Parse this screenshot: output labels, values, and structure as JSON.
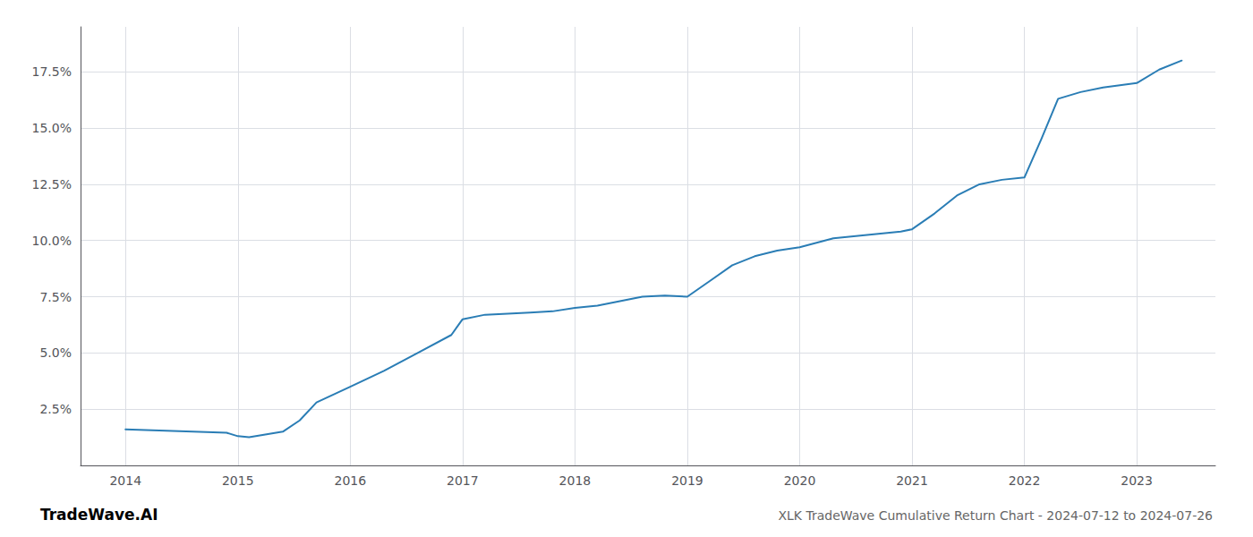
{
  "chart_data": {
    "type": "line",
    "title": "XLK TradeWave Cumulative Return Chart - 2024-07-12 to 2024-07-26",
    "annotations": [
      "TradeWave.AI"
    ],
    "x": [
      2014.0,
      2014.3,
      2014.6,
      2014.9,
      2015.0,
      2015.1,
      2015.4,
      2015.55,
      2015.7,
      2016.0,
      2016.3,
      2016.6,
      2016.9,
      2017.0,
      2017.2,
      2017.4,
      2017.6,
      2017.8,
      2018.0,
      2018.2,
      2018.4,
      2018.6,
      2018.8,
      2019.0,
      2019.2,
      2019.4,
      2019.6,
      2019.8,
      2020.0,
      2020.15,
      2020.3,
      2020.5,
      2020.7,
      2020.9,
      2021.0,
      2021.2,
      2021.4,
      2021.6,
      2021.8,
      2022.0,
      2022.15,
      2022.3,
      2022.5,
      2022.7,
      2022.85,
      2023.0,
      2023.2,
      2023.4
    ],
    "values": [
      1.6,
      1.55,
      1.5,
      1.45,
      1.3,
      1.25,
      1.5,
      2.0,
      2.8,
      3.5,
      4.2,
      5.0,
      5.8,
      6.5,
      6.7,
      6.75,
      6.8,
      6.85,
      7.0,
      7.1,
      7.3,
      7.5,
      7.55,
      7.5,
      8.2,
      8.9,
      9.3,
      9.55,
      9.7,
      9.9,
      10.1,
      10.2,
      10.3,
      10.4,
      10.5,
      11.2,
      12.0,
      12.5,
      12.7,
      12.8,
      14.5,
      16.3,
      16.6,
      16.8,
      16.9,
      17.0,
      17.6,
      18.0
    ],
    "color": "#2a7db5",
    "xlim": [
      2013.6,
      2023.7
    ],
    "xticks": [
      2014,
      2015,
      2016,
      2017,
      2018,
      2019,
      2020,
      2021,
      2022,
      2023
    ],
    "ylim": [
      0.0,
      19.5
    ],
    "yticks": [
      {
        "value": 2.5,
        "label": "2.5%"
      },
      {
        "value": 5.0,
        "label": "5.0%"
      },
      {
        "value": 7.5,
        "label": "7.5%"
      },
      {
        "value": 10.0,
        "label": "10.0%"
      },
      {
        "value": 12.5,
        "label": "12.5%"
      },
      {
        "value": 15.0,
        "label": "15.0%"
      },
      {
        "value": 17.5,
        "label": "17.5%"
      }
    ],
    "grid": true
  }
}
